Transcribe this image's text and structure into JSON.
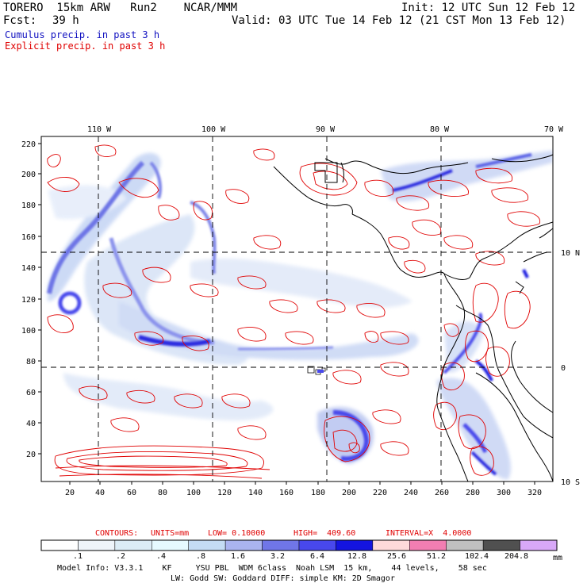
{
  "header": {
    "model": "TORERO  15km ARW   Run2    NCAR/MMM",
    "init": "Init: 12 UTC Sun 12 Feb 12",
    "fcst_label": "Fcst:",
    "fcst_hours": "39 h",
    "valid": "Valid: 03 UTC Tue 14 Feb 12 (21 CST Mon 13 Feb 12)",
    "cumulus_legend": "Cumulus precip. in past 3 h",
    "explicit_legend": "Explicit precip. in past 3 h",
    "cumulus_color": "#1010c0",
    "explicit_color": "#e00000"
  },
  "map": {
    "lon_labels": [
      "110 W",
      "100 W",
      "90 W",
      "80 W",
      "70 W"
    ],
    "lat_labels": [
      "10 N",
      "0",
      "10 S"
    ],
    "y_ticks": [
      "220",
      "200",
      "180",
      "160",
      "140",
      "120",
      "100",
      "80",
      "60",
      "40",
      "20"
    ],
    "x_ticks": [
      "20",
      "40",
      "60",
      "80",
      "100",
      "120",
      "140",
      "160",
      "180",
      "200",
      "220",
      "240",
      "260",
      "280",
      "300",
      "320"
    ]
  },
  "contour_info": {
    "contours": "CONTOURS:",
    "units": "UNITS=mm",
    "low": "LOW= 0.10000",
    "high": "HIGH=  409.60",
    "interval": "INTERVAL=X  4.0000",
    "color": "#e00000"
  },
  "colorbar": {
    "labels": [
      ".1",
      ".2",
      ".4",
      ".8",
      "1.6",
      "3.2",
      "6.4",
      "12.8",
      "25.6",
      "51.2",
      "102.4",
      "204.8"
    ],
    "unit": "mm",
    "colors": [
      "#ffffff",
      "#eef4fa",
      "#dcecf6",
      "#e6faff",
      "#c4dcf4",
      "#aab4f0",
      "#7076e8",
      "#4848ec",
      "#1414e0",
      "#ffdada",
      "#f27eb2",
      "#c0c0c0",
      "#505050",
      "#d8a8f8"
    ]
  },
  "footer": {
    "line1": "Model Info: V3.3.1    KF     YSU PBL  WDM 6class  Noah LSM  15 km,    44 levels,    58 sec",
    "line2": "LW: Godd SW: Goddard DIFF: simple KM: 2D Smagor"
  }
}
